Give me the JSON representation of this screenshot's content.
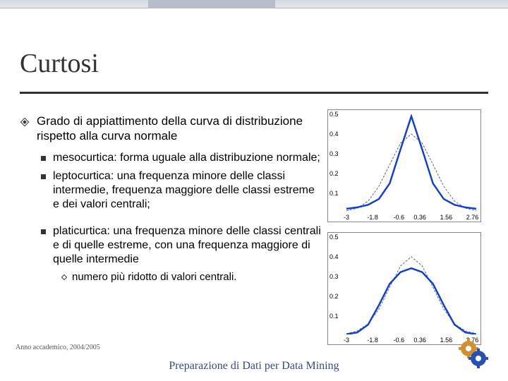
{
  "slide": {
    "title": "Curtosi",
    "main_bullet": "Grado di appiattimento della curva di distribuzione rispetto alla curva normale",
    "sub_bullets": [
      "mesocurtica: forma uguale alla distribuzione normale;",
      "leptocurtica: una frequenza minore delle classi intermedie, frequenza maggiore delle classi estreme e dei valori centrali;",
      "platicurtica: una frequenza minore delle classi centrali e di quelle estreme, con una frequenza maggiore di quelle intermedie"
    ],
    "sub_sub_bullet": "numero più ridotto di valori centrali.",
    "footer_year": "Anno accademico, 2004/2005",
    "footer_title": "Preparazione di Dati per Data Mining"
  },
  "charts": {
    "lepto": {
      "type": "line",
      "xlim": [
        -3,
        3
      ],
      "ylim": [
        0,
        0.5
      ],
      "xticks": [
        -3,
        -1.8,
        -0.6,
        0.36,
        1.56,
        2.76
      ],
      "yticks": [
        0.1,
        0.2,
        0.3,
        0.4,
        0.5
      ],
      "normal_color": "#666666",
      "normal_width": 1,
      "normal_dash": "3,2",
      "curve_color": "#1040d0",
      "curve_width": 2.5,
      "normal_series": [
        [
          -3,
          0.004
        ],
        [
          -2.5,
          0.018
        ],
        [
          -2,
          0.054
        ],
        [
          -1.5,
          0.13
        ],
        [
          -1,
          0.242
        ],
        [
          -0.5,
          0.352
        ],
        [
          0,
          0.399
        ],
        [
          0.5,
          0.352
        ],
        [
          1,
          0.242
        ],
        [
          1.5,
          0.13
        ],
        [
          2,
          0.054
        ],
        [
          2.5,
          0.018
        ],
        [
          3,
          0.004
        ]
      ],
      "curve_series": [
        [
          -3,
          0.015
        ],
        [
          -2.5,
          0.022
        ],
        [
          -2,
          0.035
        ],
        [
          -1.5,
          0.065
        ],
        [
          -1,
          0.145
        ],
        [
          -0.5,
          0.32
        ],
        [
          0,
          0.49
        ],
        [
          0.5,
          0.32
        ],
        [
          1,
          0.145
        ],
        [
          1.5,
          0.065
        ],
        [
          2,
          0.035
        ],
        [
          2.5,
          0.022
        ],
        [
          3,
          0.015
        ]
      ]
    },
    "plati": {
      "type": "line",
      "xlim": [
        -3,
        3
      ],
      "ylim": [
        0,
        0.5
      ],
      "xticks": [
        -3,
        -1.8,
        -0.6,
        0.36,
        1.56,
        2.76
      ],
      "yticks": [
        0.1,
        0.2,
        0.3,
        0.4,
        0.5
      ],
      "normal_color": "#666666",
      "normal_width": 1,
      "normal_dash": "3,2",
      "curve_color": "#1040d0",
      "curve_width": 2.5,
      "normal_series": [
        [
          -3,
          0.004
        ],
        [
          -2.5,
          0.018
        ],
        [
          -2,
          0.054
        ],
        [
          -1.5,
          0.13
        ],
        [
          -1,
          0.242
        ],
        [
          -0.5,
          0.352
        ],
        [
          0,
          0.399
        ],
        [
          0.5,
          0.352
        ],
        [
          1,
          0.242
        ],
        [
          1.5,
          0.13
        ],
        [
          2,
          0.054
        ],
        [
          2.5,
          0.018
        ],
        [
          3,
          0.004
        ]
      ],
      "curve_series": [
        [
          -3,
          0.001
        ],
        [
          -2.5,
          0.01
        ],
        [
          -2,
          0.05
        ],
        [
          -1.5,
          0.15
        ],
        [
          -1,
          0.26
        ],
        [
          -0.5,
          0.32
        ],
        [
          0,
          0.34
        ],
        [
          0.5,
          0.32
        ],
        [
          1,
          0.26
        ],
        [
          1.5,
          0.15
        ],
        [
          2,
          0.05
        ],
        [
          2.5,
          0.01
        ],
        [
          3,
          0.001
        ]
      ]
    }
  },
  "colors": {
    "title": "#333333",
    "rule": "#333333",
    "footer": "#3a4a88",
    "gear_outer": "#2850b0",
    "gear_inner": "#d09030"
  }
}
